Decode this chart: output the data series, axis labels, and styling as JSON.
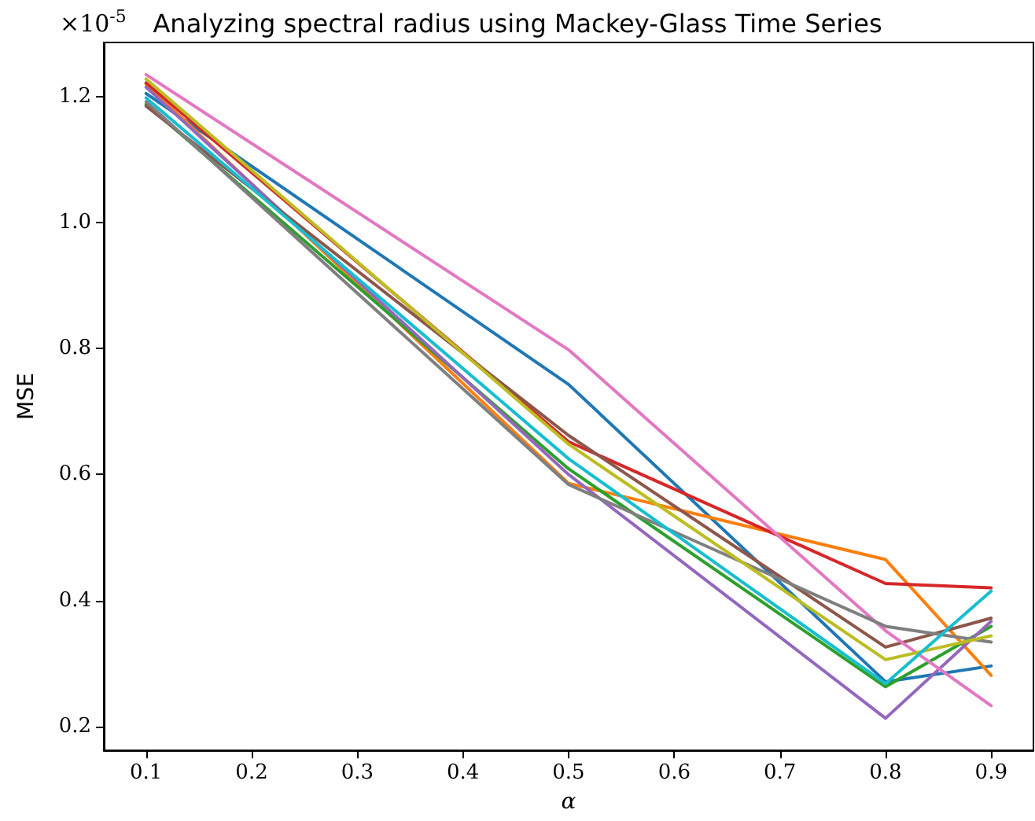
{
  "chart_data": {
    "type": "line",
    "title": "Analyzing spectral radius using Mackey-Glass Time Series",
    "xlabel": "α",
    "ylabel": "MSE",
    "annotations": [
      "×10$^{-5}$"
    ],
    "x": [
      0.1,
      0.5,
      0.8,
      0.9
    ],
    "xlim": [
      0.06,
      0.94
    ],
    "xticks": [
      0.1,
      0.2,
      0.3,
      0.4,
      0.5,
      0.6,
      0.7,
      0.8,
      0.9
    ],
    "ylim": [
      0.162,
      1.286
    ],
    "yticks": [
      0.2,
      0.4,
      0.6,
      0.8,
      {
        "value": 1,
        "label": "1.0"
      },
      1.2
    ],
    "grid": false,
    "marker": "none",
    "line_style": "solid",
    "series": [
      {
        "color": "#1f77b4",
        "values": [
          1.205,
          0.743,
          0.271,
          0.296
        ]
      },
      {
        "color": "#ff7f0e",
        "values": [
          1.22,
          0.586,
          0.465,
          0.281
        ]
      },
      {
        "color": "#2ca02c",
        "values": [
          1.188,
          0.609,
          0.263,
          0.359
        ]
      },
      {
        "color": "#d62728",
        "values": [
          1.222,
          0.652,
          0.427,
          0.42
        ]
      },
      {
        "color": "#9467bd",
        "values": [
          1.215,
          0.6,
          0.213,
          0.367
        ]
      },
      {
        "color": "#8c564b",
        "values": [
          1.185,
          0.662,
          0.326,
          0.372
        ]
      },
      {
        "color": "#e377c2",
        "values": [
          1.235,
          0.798,
          0.352,
          0.233
        ]
      },
      {
        "color": "#7f7f7f",
        "values": [
          1.192,
          0.584,
          0.359,
          0.334
        ]
      },
      {
        "color": "#bcbd22",
        "values": [
          1.228,
          0.648,
          0.306,
          0.344
        ]
      },
      {
        "color": "#17becf",
        "values": [
          1.198,
          0.625,
          0.268,
          0.415
        ]
      }
    ]
  }
}
